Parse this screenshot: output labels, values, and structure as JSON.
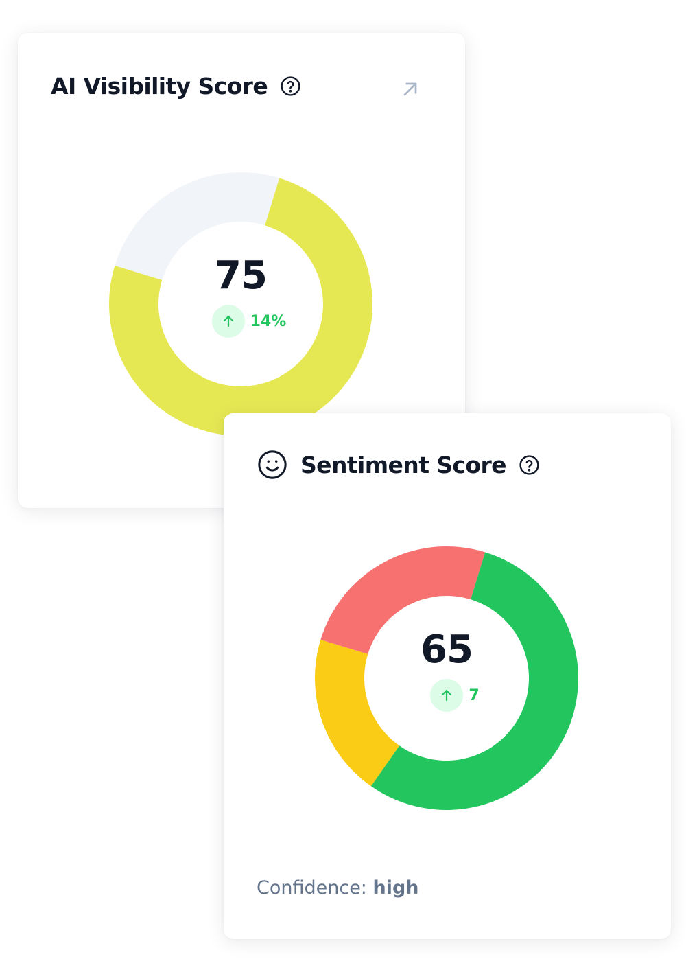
{
  "visibility_card": {
    "title": "AI Visibility Score",
    "help_icon": "help-circle-icon",
    "expand_icon": "arrow-up-right-icon",
    "score": "75",
    "delta": "14%",
    "delta_icon": "arrow-up-icon",
    "gauge": {
      "value": 75,
      "max": 100,
      "fill_color": "#e6e853",
      "track_color": "#f1f4f8"
    }
  },
  "sentiment_card": {
    "title": "Sentiment Score",
    "leading_icon": "smiley-face-icon",
    "help_icon": "help-circle-icon",
    "score": "65",
    "delta": "7",
    "delta_icon": "arrow-up-icon",
    "segments": [
      {
        "value": 55,
        "color": "#22c55e"
      },
      {
        "value": 20,
        "color": "#facc15"
      },
      {
        "value": 25,
        "color": "#f87171"
      }
    ],
    "confidence_label": "Confidence:",
    "confidence_value": "high"
  },
  "colors": {
    "positive": "#22c55e",
    "positive_bg": "#dcfce7",
    "text_primary": "#111827",
    "text_muted": "#64748b",
    "icon_muted": "#9ca3af"
  }
}
